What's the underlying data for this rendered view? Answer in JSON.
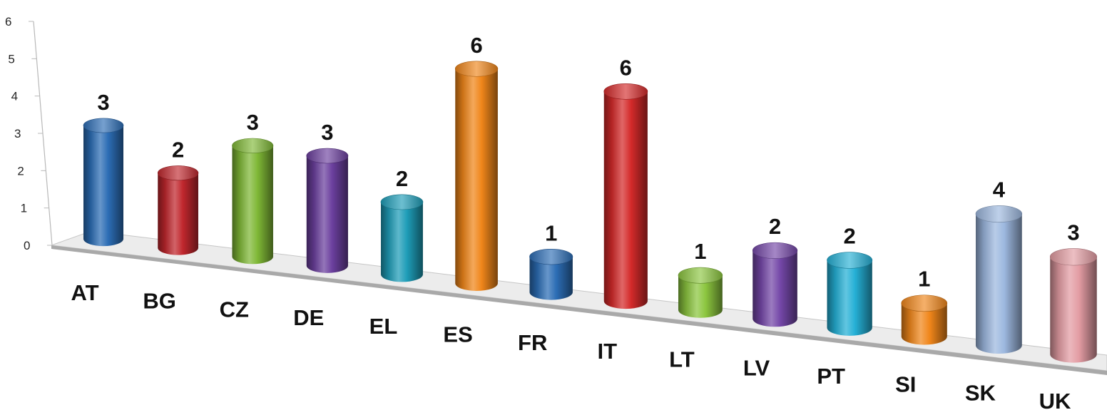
{
  "chart_data": {
    "type": "bar",
    "style": "3d-cylinder",
    "categories": [
      "AT",
      "BG",
      "CZ",
      "DE",
      "EL",
      "ES",
      "FR",
      "IT",
      "LT",
      "LV",
      "PT",
      "SI",
      "SK",
      "UK"
    ],
    "values": [
      3,
      2,
      3,
      3,
      2,
      6,
      1,
      6,
      1,
      2,
      2,
      1,
      4,
      3
    ],
    "data_labels": [
      "3",
      "2",
      "3",
      "3",
      "2",
      "6",
      "1",
      "6",
      "1",
      "2",
      "2",
      "1",
      "4",
      "3"
    ],
    "colors": [
      "#2c6db5",
      "#c0272d",
      "#7fb836",
      "#6b3f9e",
      "#1e9db8",
      "#f0861a",
      "#2c6db5",
      "#d42a2a",
      "#8cc63f",
      "#7447a8",
      "#25b0d6",
      "#f0861a",
      "#9db8df",
      "#e39ca3"
    ],
    "title": "",
    "xlabel": "",
    "ylabel": "",
    "ylim": [
      0,
      6
    ],
    "y_ticks": [
      "0",
      "1",
      "2",
      "3",
      "4",
      "5",
      "6"
    ],
    "grid": false,
    "legend": "none"
  }
}
